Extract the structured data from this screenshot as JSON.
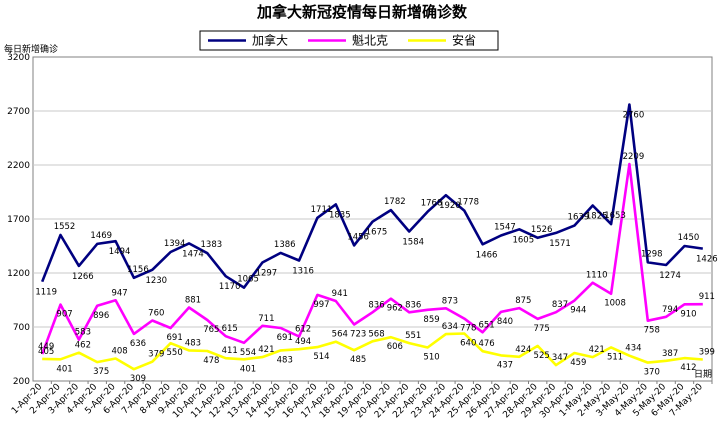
{
  "chart_data": {
    "type": "line",
    "title": "加拿大新冠疫情每日新增确诊数",
    "ylabel": "每日新增确诊",
    "xlabel": "日期",
    "ylim": [
      200,
      3200
    ],
    "yticks": [
      200,
      700,
      1200,
      1700,
      2200,
      2700,
      3200
    ],
    "grid": true,
    "legend_position": "top",
    "categories": [
      "1-Apr-20",
      "2-Apr-20",
      "3-Apr-20",
      "4-Apr-20",
      "5-Apr-20",
      "6-Apr-20",
      "7-Apr-20",
      "8-Apr-20",
      "9-Apr-20",
      "10-Apr-20",
      "11-Apr-20",
      "12-Apr-20",
      "13-Apr-20",
      "14-Apr-20",
      "15-Apr-20",
      "16-Apr-20",
      "17-Apr-20",
      "18-Apr-20",
      "19-Apr-20",
      "20-Apr-20",
      "21-Apr-20",
      "22-Apr-20",
      "23-Apr-20",
      "24-Apr-20",
      "25-Apr-20",
      "26-Apr-20",
      "27-Apr-20",
      "28-Apr-20",
      "29-Apr-20",
      "30-Apr-20",
      "1-May-20",
      "2-May-20",
      "3-May-20",
      "4-May-20",
      "5-May-20",
      "6-May-20",
      "7-May-20"
    ],
    "series": [
      {
        "name": "加拿大",
        "color": "#000080",
        "values": [
          1119,
          1552,
          1266,
          1469,
          1494,
          1156,
          1230,
          1394,
          1474,
          1383,
          1170,
          1065,
          1297,
          1386,
          1316,
          1711,
          1835,
          1456,
          1675,
          1782,
          1584,
          1768,
          1920,
          1778,
          1466,
          1547,
          1605,
          1526,
          1571,
          1639,
          1825,
          1653,
          2760,
          1298,
          1274,
          1450,
          1426
        ]
      },
      {
        "name": "魁北克",
        "color": "#ff00ff",
        "values": [
          449,
          907,
          583,
          896,
          947,
          636,
          760,
          691,
          881,
          765,
          615,
          554,
          711,
          691,
          612,
          997,
          941,
          723,
          836,
          962,
          836,
          859,
          873,
          778,
          651,
          840,
          875,
          775,
          837,
          944,
          1110,
          1008,
          2209,
          758,
          794,
          910,
          911
        ]
      },
      {
        "name": "安省",
        "color": "#ffff00",
        "values": [
          405,
          401,
          462,
          375,
          408,
          309,
          379,
          550,
          483,
          478,
          411,
          401,
          421,
          483,
          494,
          514,
          564,
          485,
          568,
          606,
          551,
          510,
          634,
          640,
          476,
          437,
          424,
          525,
          347,
          459,
          421,
          511,
          434,
          370,
          387,
          412,
          399
        ]
      }
    ],
    "data_labels": [
      [
        1119,
        1552,
        1266,
        1469,
        1494,
        1156,
        1230,
        1394,
        1474,
        1383,
        1170,
        1065,
        1297,
        1386,
        1316,
        1711,
        1835,
        1456,
        1675,
        1782,
        1584,
        1768,
        1920,
        1778,
        1466,
        1547,
        1605,
        1526,
        1571,
        1639,
        1825,
        1653,
        2760,
        1298,
        1274,
        1450,
        1426
      ],
      [
        449,
        907,
        583,
        896,
        947,
        636,
        760,
        691,
        881,
        765,
        615,
        554,
        711,
        691,
        612,
        997,
        941,
        723,
        836,
        962,
        836,
        859,
        873,
        778,
        651,
        840,
        875,
        775,
        837,
        944,
        1110,
        1008,
        2209,
        758,
        794,
        910,
        911
      ],
      [
        405,
        401,
        462,
        375,
        408,
        309,
        379,
        550,
        483,
        478,
        411,
        401,
        421,
        483,
        494,
        514,
        564,
        485,
        568,
        606,
        551,
        510,
        634,
        640,
        476,
        437,
        424,
        525,
        347,
        459,
        421,
        511,
        434,
        370,
        387,
        412,
        399
      ]
    ]
  }
}
